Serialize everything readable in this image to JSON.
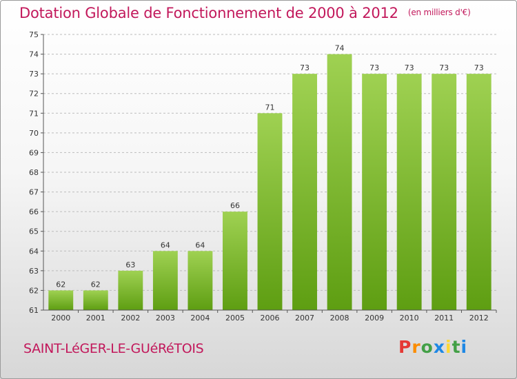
{
  "header": {
    "title": "Dotation Globale de Fonctionnement de 2000 à 2012",
    "unit": "(en milliers d'€)"
  },
  "footer": {
    "commune": "SAINT-LéGER-LE-GUéRéTOIS",
    "brand": "Proxiti",
    "brand_colors": [
      "#e53935",
      "#fb8c00",
      "#43a047",
      "#1e88e5",
      "#fdd835",
      "#43a047",
      "#1e88e5"
    ]
  },
  "colors": {
    "accent": "#c2185b",
    "bar_top": "#9fd152",
    "bar_bottom": "#5e9e12",
    "grid": "#bbbbbb",
    "axis": "#555555"
  },
  "chart_data": {
    "type": "bar",
    "title": "Dotation Globale de Fonctionnement de 2000 à 2012",
    "categories": [
      "2000",
      "2001",
      "2002",
      "2003",
      "2004",
      "2005",
      "2006",
      "2007",
      "2008",
      "2009",
      "2010",
      "2011",
      "2012"
    ],
    "values": [
      62,
      62,
      63,
      64,
      64,
      66,
      71,
      73,
      74,
      73,
      73,
      73,
      73
    ],
    "ylim": [
      61,
      75
    ],
    "yticks": [
      61,
      62,
      63,
      64,
      65,
      66,
      67,
      68,
      69,
      70,
      71,
      72,
      73,
      74,
      75
    ],
    "ytick_labels": [
      "61",
      "62",
      "63",
      "64",
      "65",
      "66",
      "67",
      "68",
      "69",
      "70",
      "71",
      "72",
      "73",
      "74",
      "75"
    ],
    "grid": true,
    "data_labels": true
  }
}
